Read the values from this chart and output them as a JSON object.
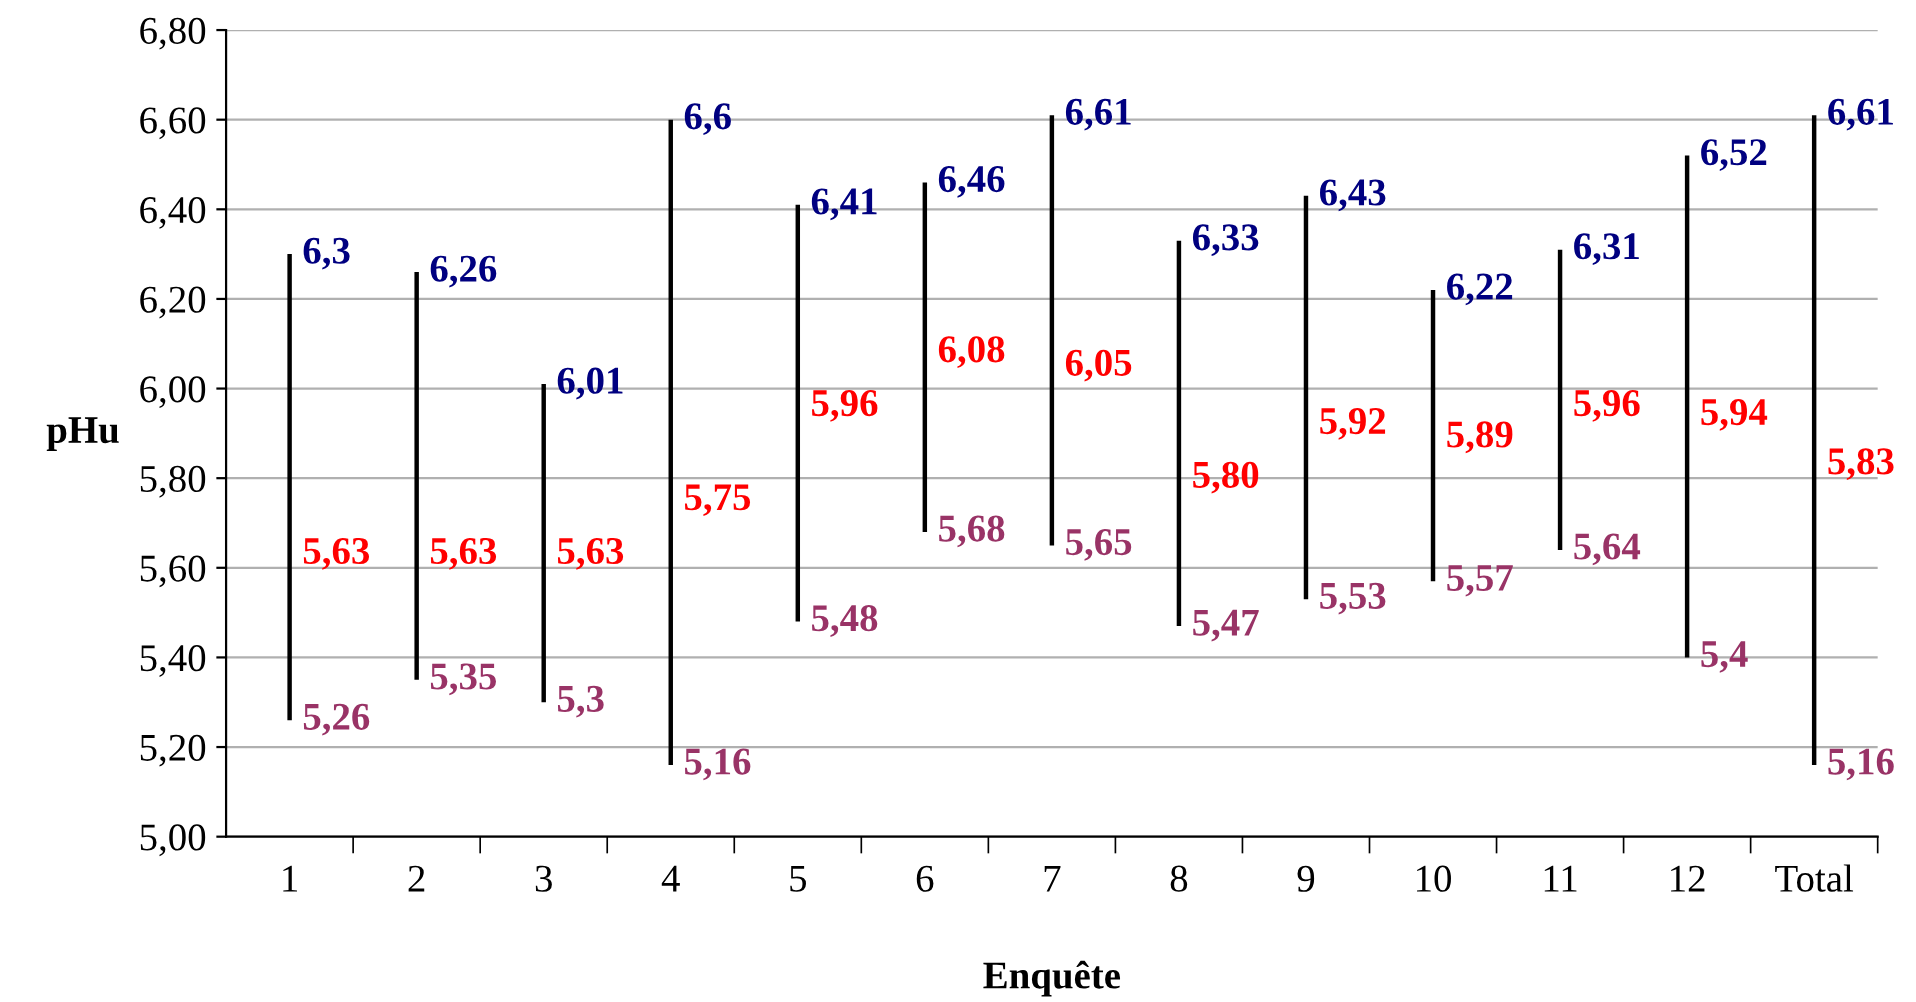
{
  "chart_data": {
    "type": "bar",
    "xlabel": "Enquête",
    "ylabel": "pHu",
    "categories": [
      "1",
      "2",
      "3",
      "4",
      "5",
      "6",
      "7",
      "8",
      "9",
      "10",
      "11",
      "12",
      "Total"
    ],
    "base": [
      5.26,
      5.35,
      5.3,
      5.16,
      5.48,
      5.68,
      5.65,
      5.47,
      5.53,
      5.57,
      5.64,
      5.4,
      5.16
    ],
    "values": [
      1.04,
      0.91,
      0.71,
      1.44,
      0.93,
      0.78,
      0.96,
      0.86,
      0.9,
      0.65,
      0.67,
      1.12,
      1.45
    ],
    "color": "#000000",
    "annotations": [
      {
        "text": "6,3",
        "x": "1",
        "y": 6.3
      },
      {
        "text": "5,63",
        "x": "1",
        "y": 5.63
      },
      {
        "text": "5,26",
        "x": "1",
        "y": 5.26
      },
      {
        "text": "6,26",
        "x": "2",
        "y": 6.26
      },
      {
        "text": "5,63",
        "x": "2",
        "y": 5.63
      },
      {
        "text": "5,35",
        "x": "2",
        "y": 5.35
      },
      {
        "text": "6,01",
        "x": "3",
        "y": 6.01
      },
      {
        "text": "5,63",
        "x": "3",
        "y": 5.63
      },
      {
        "text": "5,3",
        "x": "3",
        "y": 5.3
      },
      {
        "text": "6,6",
        "x": "4",
        "y": 6.6
      },
      {
        "text": "5,75",
        "x": "4",
        "y": 5.75
      },
      {
        "text": "5,16",
        "x": "4",
        "y": 5.16
      },
      {
        "text": "6,41",
        "x": "5",
        "y": 6.41
      },
      {
        "text": "5,96",
        "x": "5",
        "y": 5.96
      },
      {
        "text": "5,48",
        "x": "5",
        "y": 5.48
      },
      {
        "text": "6,46",
        "x": "6",
        "y": 6.46
      },
      {
        "text": "6,08",
        "x": "6",
        "y": 6.08
      },
      {
        "text": "5,68",
        "x": "6",
        "y": 5.68
      },
      {
        "text": "6,61",
        "x": "7",
        "y": 6.61
      },
      {
        "text": "6,05",
        "x": "7",
        "y": 6.05
      },
      {
        "text": "5,65",
        "x": "7",
        "y": 5.65
      },
      {
        "text": "6,33",
        "x": "8",
        "y": 6.33
      },
      {
        "text": "5,80",
        "x": "8",
        "y": 5.8
      },
      {
        "text": "5,47",
        "x": "8",
        "y": 5.47
      },
      {
        "text": "6,43",
        "x": "9",
        "y": 6.43
      },
      {
        "text": "5,92",
        "x": "9",
        "y": 5.92
      },
      {
        "text": "5,53",
        "x": "9",
        "y": 5.53
      },
      {
        "text": "6,22",
        "x": "10",
        "y": 6.22
      },
      {
        "text": "5,89",
        "x": "10",
        "y": 5.89
      },
      {
        "text": "5,57",
        "x": "10",
        "y": 5.57
      },
      {
        "text": "6,31",
        "x": "11",
        "y": 6.31
      },
      {
        "text": "5,96",
        "x": "11",
        "y": 5.96
      },
      {
        "text": "5,64",
        "x": "11",
        "y": 5.64
      },
      {
        "text": "6,52",
        "x": "12",
        "y": 6.52
      },
      {
        "text": "5,94",
        "x": "12",
        "y": 5.94
      },
      {
        "text": "5,4",
        "x": "12",
        "y": 5.4
      },
      {
        "text": "6,61",
        "x": "Total",
        "y": 6.61
      },
      {
        "text": "5,83",
        "x": "Total",
        "y": 5.83
      },
      {
        "text": "5,16",
        "x": "Total",
        "y": 5.16
      }
    ],
    "ylim": [
      5.0,
      6.8
    ],
    "yticks": [
      {
        "value": 5.0,
        "label": "5,00"
      },
      {
        "value": 5.2,
        "label": "5,20"
      },
      {
        "value": 5.4,
        "label": "5,40"
      },
      {
        "value": 5.6,
        "label": "5,60"
      },
      {
        "value": 5.8,
        "label": "5,80"
      },
      {
        "value": 6.0,
        "label": "6,00"
      },
      {
        "value": 6.2,
        "label": "6,20"
      },
      {
        "value": 6.4,
        "label": "6,40"
      },
      {
        "value": 6.6,
        "label": "6,60"
      },
      {
        "value": 6.8,
        "label": "6,80"
      }
    ],
    "grid": "y"
  }
}
